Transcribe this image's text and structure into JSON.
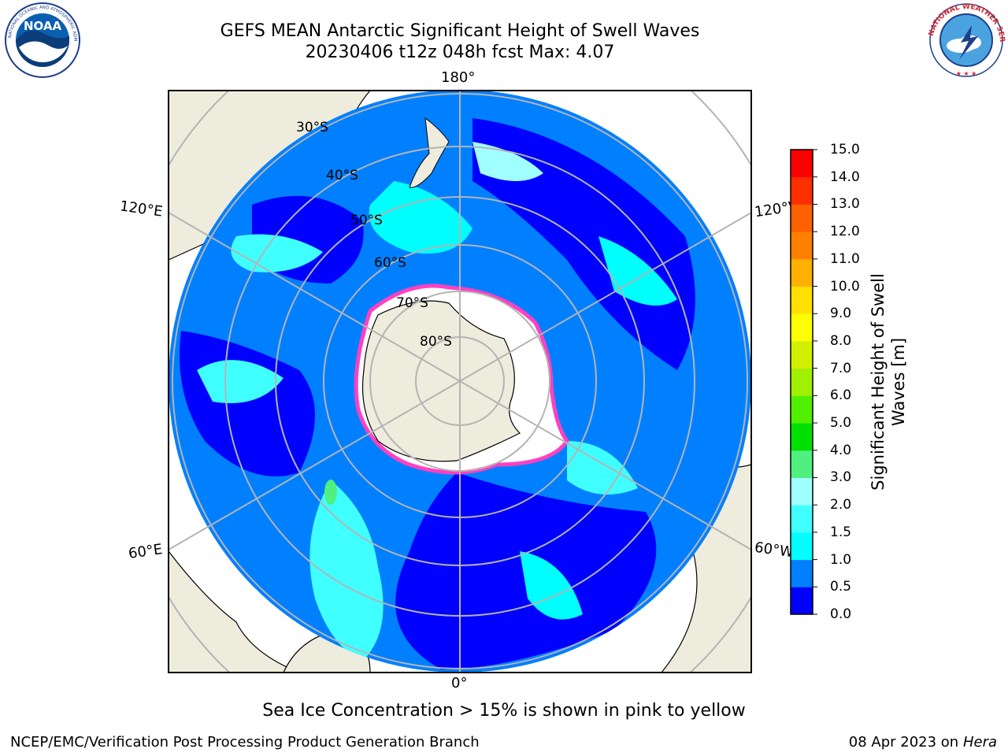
{
  "header": {
    "title": "GEFS MEAN Antarctic Significant Height of Swell Waves",
    "subtitle": "20230406 t12z 048h fcst   Max: 4.07"
  },
  "logos": {
    "left": {
      "name": "NOAA",
      "ring_text": "NATIONAL OCEANIC AND ATMOSPHERIC ADMINISTRATION · U.S. DEPARTMENT OF COMMERCE"
    },
    "right": {
      "name": "National Weather Service",
      "ring_text": "NATIONAL WEATHER SERVICE"
    }
  },
  "map": {
    "projection": "south polar stereographic",
    "longitude_labels": {
      "top": "180°",
      "bottom": "0°",
      "upper_left": "120°E",
      "upper_right": "120°W",
      "lower_left": "60°E",
      "lower_right": "60°W"
    },
    "latitude_labels": [
      "30°S",
      "40°S",
      "50°S",
      "60°S",
      "70°S",
      "80°S"
    ],
    "colors": {
      "land": "#eeecdc",
      "ocean_low": "#0000ff",
      "ocean_mid": "#0080ff",
      "ice": "#ffffff",
      "grid": "#b4b4b4"
    }
  },
  "colorbar": {
    "label": "Significant Height of Swell Waves [m]",
    "ticks": [
      "0.0",
      "0.5",
      "1.0",
      "1.5",
      "2.0",
      "3.0",
      "4.0",
      "5.0",
      "6.0",
      "7.0",
      "8.0",
      "9.0",
      "10.0",
      "11.0",
      "12.0",
      "13.0",
      "14.0",
      "15.0"
    ],
    "colors": [
      "#0000ff",
      "#0080ff",
      "#00ffff",
      "#40ffff",
      "#a0ffff",
      "#50f080",
      "#00e000",
      "#50f000",
      "#a0f000",
      "#d0f000",
      "#ffff00",
      "#ffe000",
      "#ffb000",
      "#ff8000",
      "#ff6000",
      "#ff3000",
      "#ff0000"
    ]
  },
  "footer": {
    "note": "Sea Ice Concentration > 15% is shown in pink to yellow",
    "credit": "NCEP/EMC/Verification Post Processing Product Generation Branch",
    "date_prefix": "08 Apr 2023 on ",
    "machine": "Hera"
  }
}
